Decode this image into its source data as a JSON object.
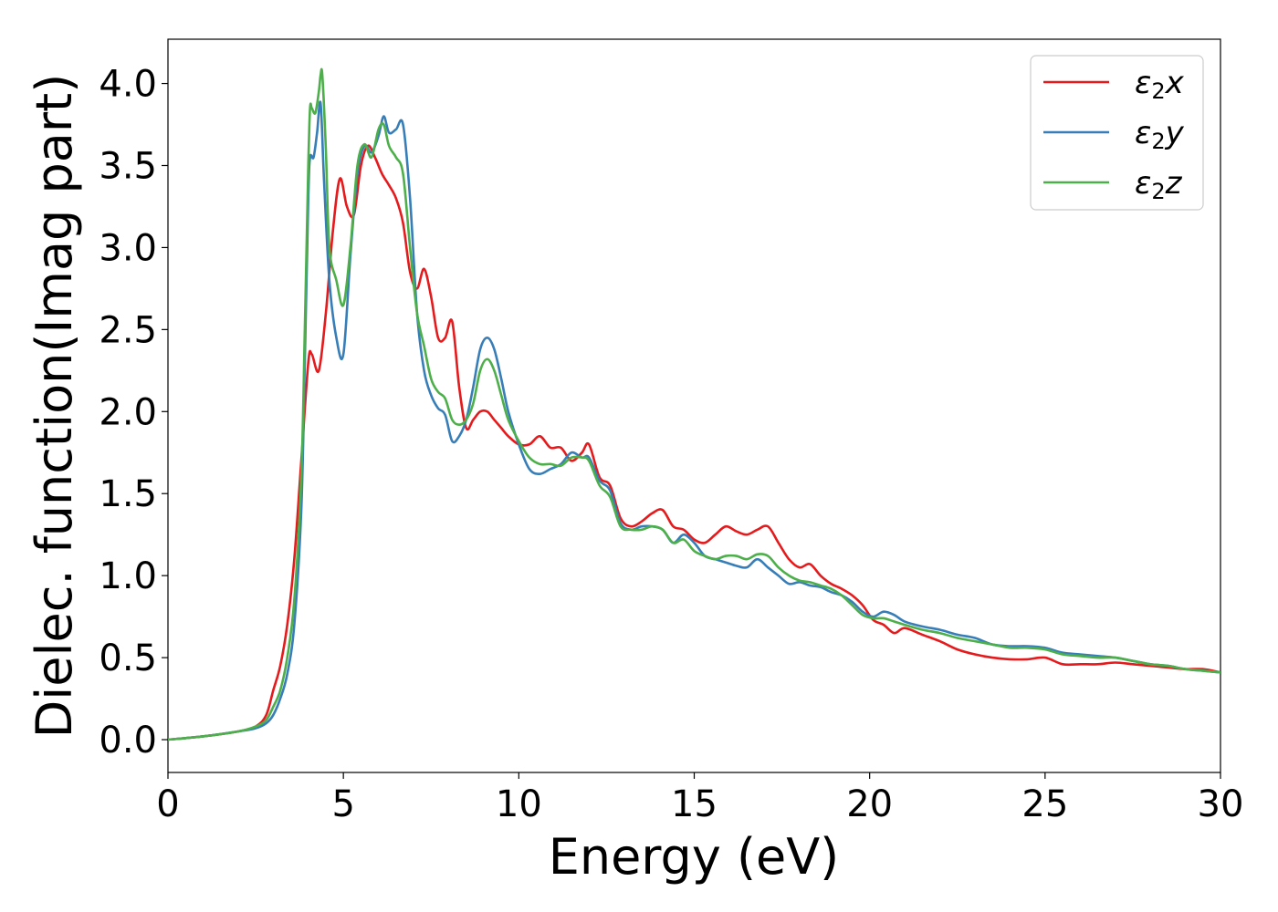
{
  "chart_data": {
    "type": "line",
    "title": "",
    "xlabel": "Energy (eV)",
    "ylabel": "Dielec. function(Imag part)",
    "xlim": [
      0,
      30
    ],
    "ylim": [
      -0.2,
      4.27
    ],
    "xticks": [
      0,
      5,
      10,
      15,
      20,
      25,
      30
    ],
    "yticks": [
      0.0,
      0.5,
      1.0,
      1.5,
      2.0,
      2.5,
      3.0,
      3.5,
      4.0
    ],
    "xtick_labels": [
      "0",
      "5",
      "10",
      "15",
      "20",
      "25",
      "30"
    ],
    "ytick_labels": [
      "0.0",
      "0.5",
      "1.0",
      "1.5",
      "2.0",
      "2.5",
      "3.0",
      "3.5",
      "4.0"
    ],
    "grid": false,
    "legend": "top-right",
    "series": [
      {
        "name": "ε₂x",
        "legend_base": "ε",
        "legend_sub": "2",
        "legend_var": "x",
        "color": "#e41a1c",
        "x": [
          0,
          1,
          2,
          2.5,
          2.8,
          3.0,
          3.2,
          3.4,
          3.6,
          3.8,
          4.0,
          4.1,
          4.3,
          4.5,
          4.7,
          4.9,
          5.1,
          5.3,
          5.5,
          5.7,
          5.9,
          6.1,
          6.3,
          6.5,
          6.7,
          6.9,
          7.1,
          7.3,
          7.5,
          7.7,
          7.9,
          8.1,
          8.3,
          8.5,
          8.7,
          8.9,
          9.1,
          9.3,
          9.5,
          9.7,
          10.0,
          10.3,
          10.6,
          10.9,
          11.2,
          11.5,
          11.8,
          12.0,
          12.3,
          12.6,
          12.9,
          13.2,
          13.5,
          13.8,
          14.1,
          14.4,
          14.7,
          15.0,
          15.3,
          15.6,
          15.9,
          16.2,
          16.5,
          16.8,
          17.1,
          17.4,
          17.7,
          18.0,
          18.3,
          18.6,
          18.9,
          19.2,
          19.5,
          19.8,
          20.1,
          20.4,
          20.7,
          21.0,
          21.5,
          22.0,
          22.5,
          23.0,
          23.5,
          24.0,
          24.5,
          25.0,
          25.5,
          26.0,
          26.5,
          27.0,
          27.5,
          28.0,
          28.5,
          29.0,
          29.5,
          30.0
        ],
        "y": [
          0.0,
          0.02,
          0.05,
          0.08,
          0.15,
          0.3,
          0.45,
          0.7,
          1.1,
          1.7,
          2.3,
          2.35,
          2.25,
          2.6,
          3.1,
          3.42,
          3.25,
          3.2,
          3.5,
          3.62,
          3.55,
          3.45,
          3.38,
          3.3,
          3.15,
          2.85,
          2.75,
          2.87,
          2.7,
          2.45,
          2.45,
          2.55,
          2.15,
          1.9,
          1.95,
          2.0,
          2.0,
          1.95,
          1.9,
          1.85,
          1.8,
          1.8,
          1.85,
          1.78,
          1.78,
          1.7,
          1.75,
          1.8,
          1.6,
          1.55,
          1.35,
          1.3,
          1.33,
          1.38,
          1.4,
          1.3,
          1.28,
          1.22,
          1.2,
          1.25,
          1.3,
          1.27,
          1.25,
          1.28,
          1.3,
          1.2,
          1.1,
          1.05,
          1.07,
          1.0,
          0.95,
          0.92,
          0.88,
          0.82,
          0.73,
          0.7,
          0.65,
          0.68,
          0.64,
          0.6,
          0.55,
          0.52,
          0.5,
          0.49,
          0.49,
          0.5,
          0.46,
          0.46,
          0.46,
          0.47,
          0.46,
          0.45,
          0.44,
          0.43,
          0.43,
          0.41
        ]
      },
      {
        "name": "ε₂y",
        "legend_base": "ε",
        "legend_sub": "2",
        "legend_var": "y",
        "color": "#377eb8",
        "x": [
          0,
          1,
          2,
          2.5,
          2.8,
          3.0,
          3.2,
          3.4,
          3.6,
          3.8,
          3.9,
          4.0,
          4.05,
          4.15,
          4.25,
          4.35,
          4.45,
          4.6,
          4.8,
          5.0,
          5.2,
          5.4,
          5.6,
          5.8,
          6.0,
          6.15,
          6.3,
          6.5,
          6.7,
          6.9,
          7.1,
          7.3,
          7.5,
          7.7,
          7.9,
          8.1,
          8.3,
          8.5,
          8.7,
          8.9,
          9.1,
          9.3,
          9.5,
          9.7,
          10.0,
          10.3,
          10.6,
          10.9,
          11.2,
          11.5,
          11.8,
          12.0,
          12.3,
          12.6,
          12.9,
          13.2,
          13.5,
          13.8,
          14.1,
          14.4,
          14.7,
          15.0,
          15.3,
          15.6,
          15.9,
          16.2,
          16.5,
          16.8,
          17.1,
          17.4,
          17.7,
          18.0,
          18.3,
          18.6,
          18.9,
          19.2,
          19.5,
          19.8,
          20.1,
          20.4,
          20.7,
          21.0,
          21.5,
          22.0,
          22.5,
          23.0,
          23.5,
          24.0,
          24.5,
          25.0,
          25.5,
          26.0,
          26.5,
          27.0,
          27.5,
          28.0,
          28.5,
          29.0,
          29.5,
          30.0
        ],
        "y": [
          0.0,
          0.02,
          0.05,
          0.07,
          0.1,
          0.15,
          0.25,
          0.4,
          0.7,
          1.4,
          2.3,
          3.3,
          3.55,
          3.55,
          3.7,
          3.88,
          3.4,
          2.8,
          2.45,
          2.35,
          2.95,
          3.45,
          3.62,
          3.58,
          3.68,
          3.8,
          3.7,
          3.72,
          3.75,
          3.3,
          2.6,
          2.25,
          2.1,
          2.02,
          1.98,
          1.82,
          1.85,
          1.95,
          2.15,
          2.38,
          2.45,
          2.38,
          2.2,
          2.0,
          1.8,
          1.65,
          1.62,
          1.65,
          1.68,
          1.75,
          1.72,
          1.72,
          1.58,
          1.52,
          1.32,
          1.28,
          1.3,
          1.3,
          1.28,
          1.2,
          1.25,
          1.2,
          1.12,
          1.1,
          1.08,
          1.06,
          1.05,
          1.1,
          1.05,
          1.0,
          0.95,
          0.96,
          0.94,
          0.93,
          0.9,
          0.88,
          0.84,
          0.78,
          0.75,
          0.78,
          0.76,
          0.72,
          0.69,
          0.67,
          0.64,
          0.62,
          0.58,
          0.57,
          0.57,
          0.56,
          0.53,
          0.52,
          0.51,
          0.5,
          0.48,
          0.46,
          0.45,
          0.43,
          0.42,
          0.41
        ]
      },
      {
        "name": "ε₂z",
        "legend_base": "ε",
        "legend_sub": "2",
        "legend_var": "z",
        "color": "#4daf4a",
        "x": [
          0,
          1,
          2,
          2.5,
          2.8,
          3.0,
          3.2,
          3.4,
          3.6,
          3.8,
          3.9,
          4.0,
          4.05,
          4.1,
          4.2,
          4.3,
          4.35,
          4.4,
          4.5,
          4.6,
          4.8,
          5.0,
          5.2,
          5.4,
          5.6,
          5.8,
          6.0,
          6.15,
          6.3,
          6.5,
          6.7,
          6.9,
          7.1,
          7.3,
          7.5,
          7.7,
          7.9,
          8.1,
          8.3,
          8.5,
          8.7,
          8.9,
          9.1,
          9.3,
          9.5,
          9.7,
          10.0,
          10.3,
          10.6,
          10.9,
          11.2,
          11.5,
          11.8,
          12.0,
          12.3,
          12.6,
          12.9,
          13.2,
          13.5,
          13.8,
          14.1,
          14.4,
          14.7,
          15.0,
          15.3,
          15.6,
          15.9,
          16.2,
          16.5,
          16.8,
          17.1,
          17.4,
          17.7,
          18.0,
          18.3,
          18.6,
          18.9,
          19.2,
          19.5,
          19.8,
          20.1,
          20.4,
          20.7,
          21.0,
          21.5,
          22.0,
          22.5,
          23.0,
          23.5,
          24.0,
          24.5,
          25.0,
          25.5,
          26.0,
          26.5,
          27.0,
          27.5,
          28.0,
          28.5,
          29.0,
          29.5,
          30.0
        ],
        "y": [
          0.0,
          0.02,
          0.05,
          0.08,
          0.12,
          0.2,
          0.3,
          0.5,
          0.85,
          1.6,
          2.5,
          3.5,
          3.85,
          3.85,
          3.82,
          3.95,
          4.05,
          4.05,
          3.6,
          3.0,
          2.8,
          2.65,
          3.0,
          3.5,
          3.63,
          3.55,
          3.72,
          3.75,
          3.62,
          3.55,
          3.45,
          3.0,
          2.6,
          2.4,
          2.2,
          2.12,
          2.08,
          1.95,
          1.92,
          1.95,
          2.05,
          2.25,
          2.32,
          2.25,
          2.1,
          1.95,
          1.82,
          1.72,
          1.68,
          1.68,
          1.67,
          1.72,
          1.72,
          1.7,
          1.55,
          1.48,
          1.3,
          1.28,
          1.28,
          1.3,
          1.28,
          1.2,
          1.22,
          1.15,
          1.12,
          1.1,
          1.12,
          1.12,
          1.1,
          1.13,
          1.12,
          1.05,
          1.0,
          0.97,
          0.96,
          0.94,
          0.92,
          0.88,
          0.82,
          0.76,
          0.74,
          0.74,
          0.72,
          0.7,
          0.67,
          0.65,
          0.62,
          0.6,
          0.58,
          0.56,
          0.56,
          0.55,
          0.52,
          0.51,
          0.5,
          0.5,
          0.48,
          0.46,
          0.45,
          0.43,
          0.42,
          0.41
        ]
      }
    ]
  }
}
